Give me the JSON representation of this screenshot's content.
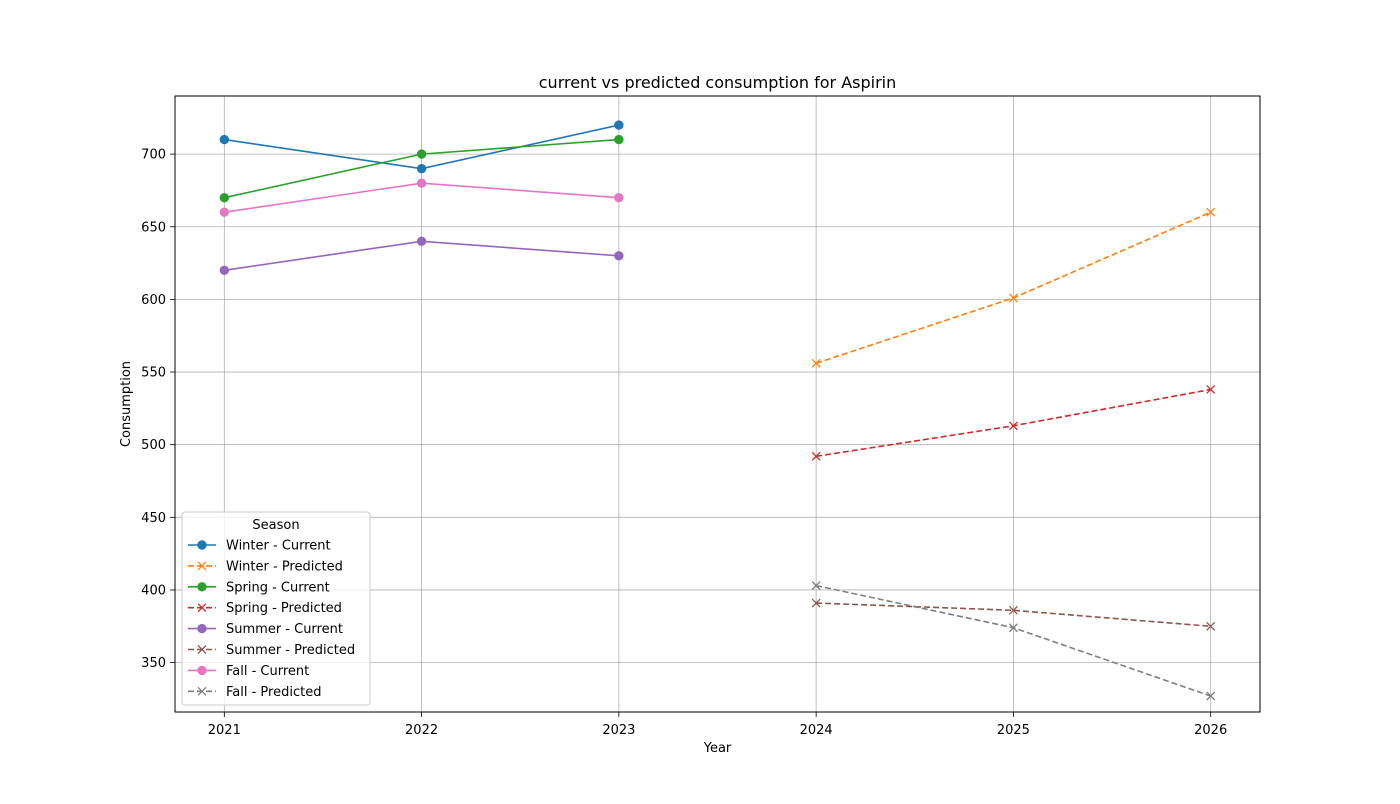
{
  "chart_data": {
    "type": "line",
    "title": "current vs predicted consumption for Aspirin",
    "xlabel": "Year",
    "ylabel": "Consumption",
    "xlim": [
      2020.75,
      2026.25
    ],
    "ylim": [
      316,
      740
    ],
    "xticks": [
      2021,
      2022,
      2023,
      2024,
      2025,
      2026
    ],
    "yticks": [
      350,
      400,
      450,
      500,
      550,
      600,
      650,
      700
    ],
    "grid": true,
    "legend": {
      "title": "Season",
      "placement": "lower-left"
    },
    "series": [
      {
        "name": "Winter - Current",
        "style": "solid",
        "marker": "circle",
        "color": "#1f77b4",
        "x": [
          2021,
          2022,
          2023
        ],
        "y": [
          710,
          690,
          720
        ]
      },
      {
        "name": "Winter - Predicted",
        "style": "dashed",
        "marker": "x",
        "color": "#ff7f0e",
        "x": [
          2024,
          2025,
          2026
        ],
        "y": [
          556,
          601,
          660
        ]
      },
      {
        "name": "Spring - Current",
        "style": "solid",
        "marker": "circle",
        "color": "#2ca02c",
        "x": [
          2021,
          2022,
          2023
        ],
        "y": [
          670,
          700,
          710
        ]
      },
      {
        "name": "Spring - Predicted",
        "style": "dashed",
        "marker": "x",
        "color": "#d62728",
        "x": [
          2024,
          2025,
          2026
        ],
        "y": [
          492,
          513,
          538
        ]
      },
      {
        "name": "Summer - Current",
        "style": "solid",
        "marker": "circle",
        "color": "#9467bd",
        "x": [
          2021,
          2022,
          2023
        ],
        "y": [
          620,
          640,
          630
        ]
      },
      {
        "name": "Summer - Predicted",
        "style": "dashed",
        "marker": "x",
        "color": "#8c564b",
        "x": [
          2024,
          2025,
          2026
        ],
        "y": [
          391,
          386,
          375
        ]
      },
      {
        "name": "Fall - Current",
        "style": "solid",
        "marker": "circle",
        "color": "#e377c2",
        "x": [
          2021,
          2022,
          2023
        ],
        "y": [
          660,
          680,
          670
        ]
      },
      {
        "name": "Fall - Predicted",
        "style": "dashed",
        "marker": "x",
        "color": "#7f7f7f",
        "x": [
          2024,
          2025,
          2026
        ],
        "y": [
          403,
          374,
          327
        ]
      }
    ]
  }
}
